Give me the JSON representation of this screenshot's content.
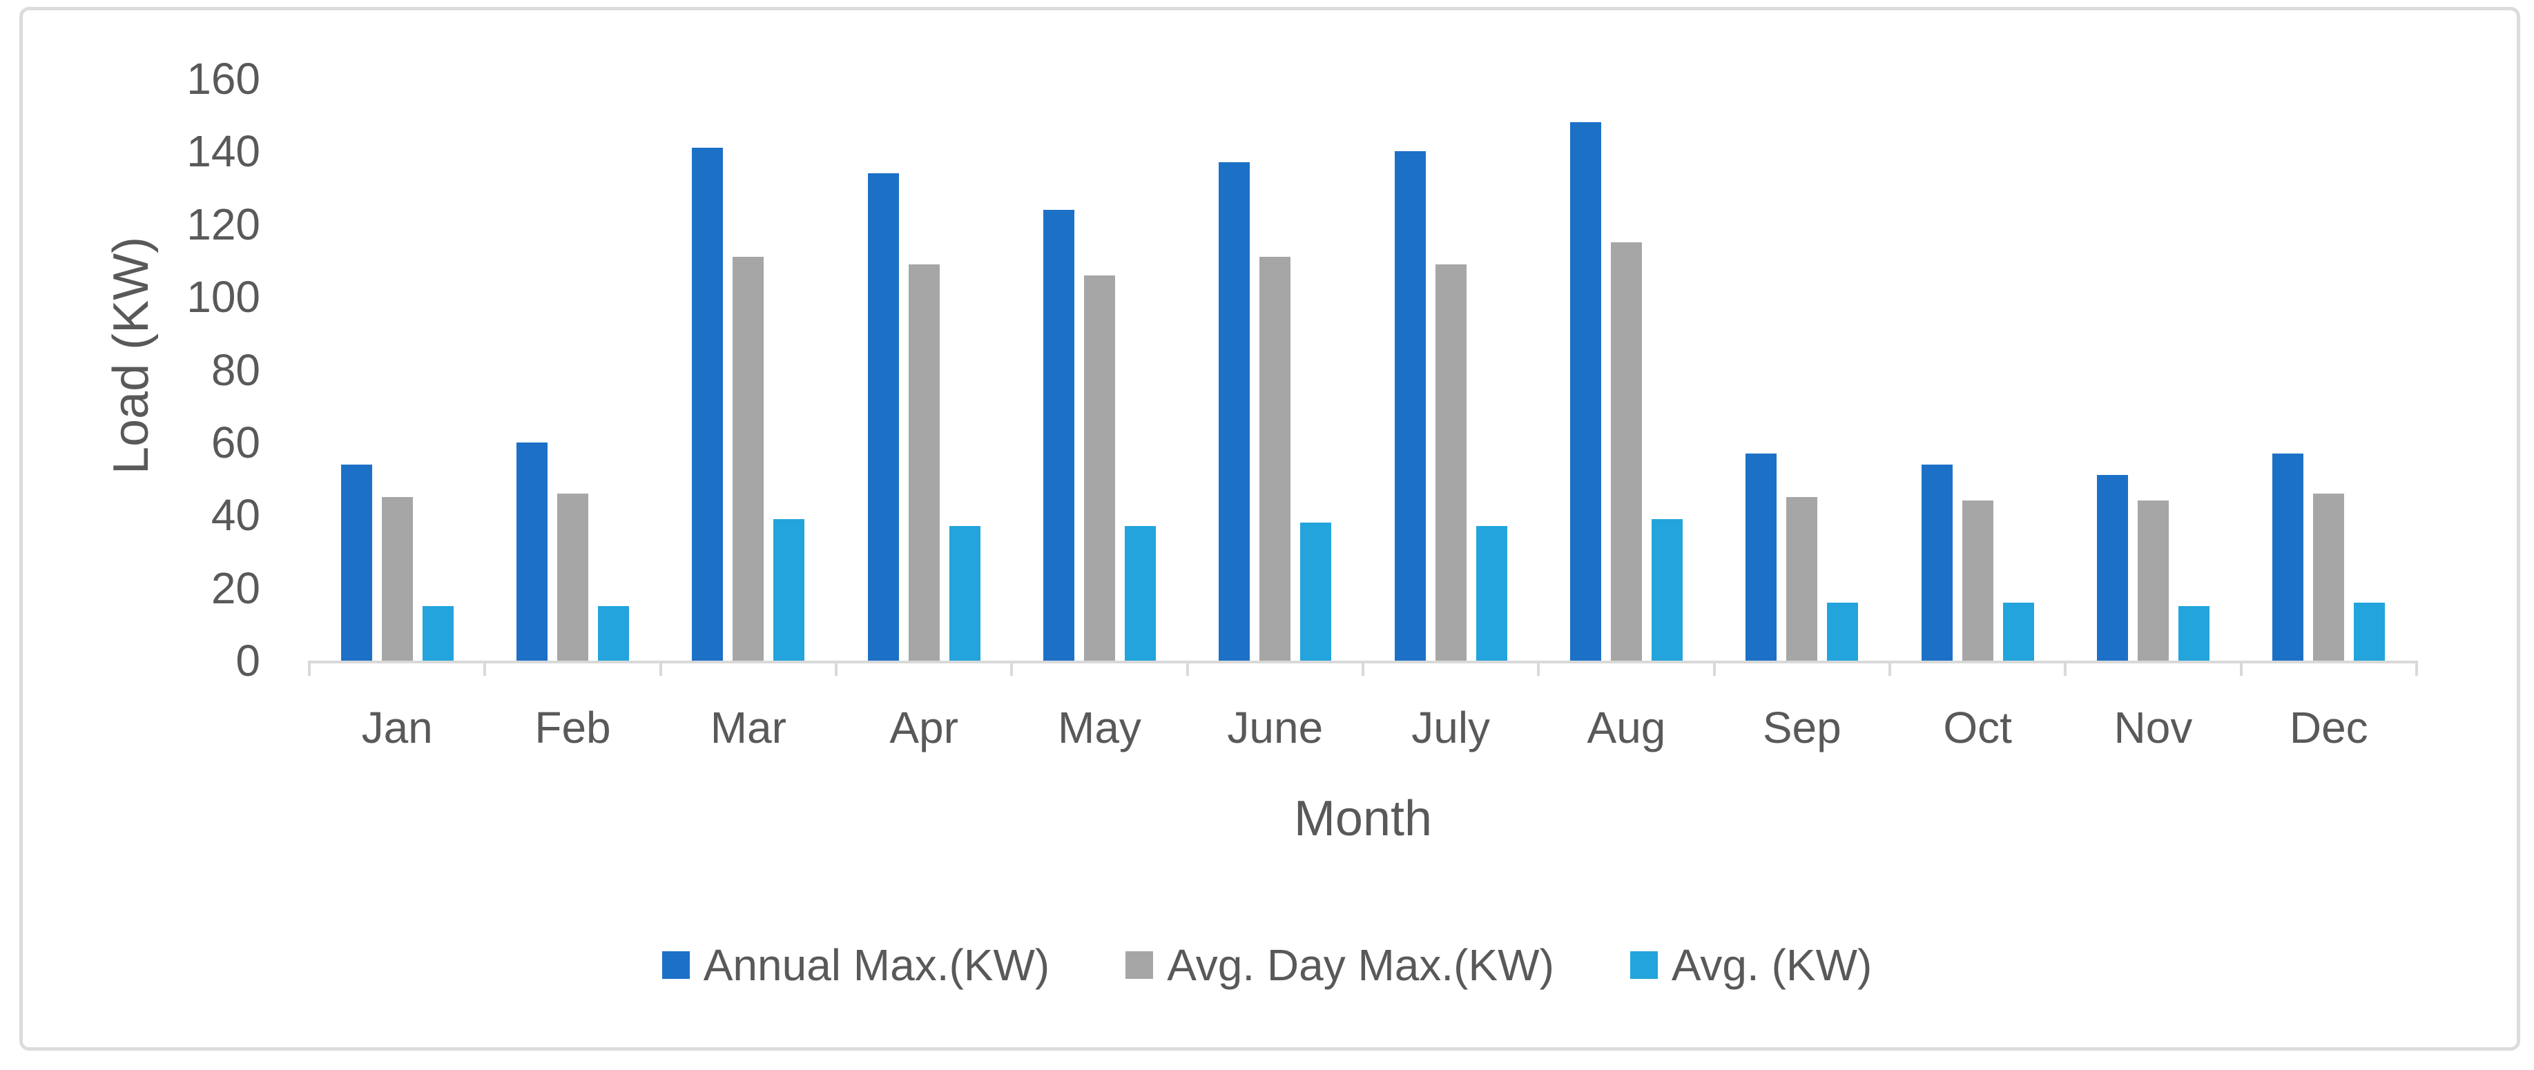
{
  "chart_data": {
    "type": "bar",
    "title": "",
    "categories": [
      "Jan",
      "Feb",
      "Mar",
      "Apr",
      "May",
      "June",
      "July",
      "Aug",
      "Sep",
      "Oct",
      "Nov",
      "Dec"
    ],
    "series": [
      {
        "name": "Annual Max.(KW)",
        "color": "#1C71C7",
        "values": [
          54,
          60,
          141,
          134,
          124,
          137,
          140,
          148,
          57,
          54,
          51,
          57
        ]
      },
      {
        "name": "Avg. Day Max.(KW)",
        "color": "#A6A6A6",
        "values": [
          45,
          46,
          111,
          109,
          106,
          111,
          109,
          115,
          45,
          44,
          44,
          46
        ]
      },
      {
        "name": "Avg. (KW)",
        "color": "#23A4DC",
        "values": [
          15,
          15,
          39,
          37,
          37,
          38,
          37,
          39,
          16,
          16,
          15,
          16
        ]
      }
    ],
    "xlabel": "Month",
    "ylabel": "Load (KW)",
    "ylim": [
      0,
      160
    ],
    "yticks": [
      0,
      20,
      40,
      60,
      80,
      100,
      120,
      140,
      160
    ],
    "grid": false,
    "legend_position": "bottom"
  },
  "colors": {
    "axis": "#D9D9D9",
    "text": "#595959",
    "frame": "#DCDCDC",
    "background": "#FFFFFF"
  }
}
